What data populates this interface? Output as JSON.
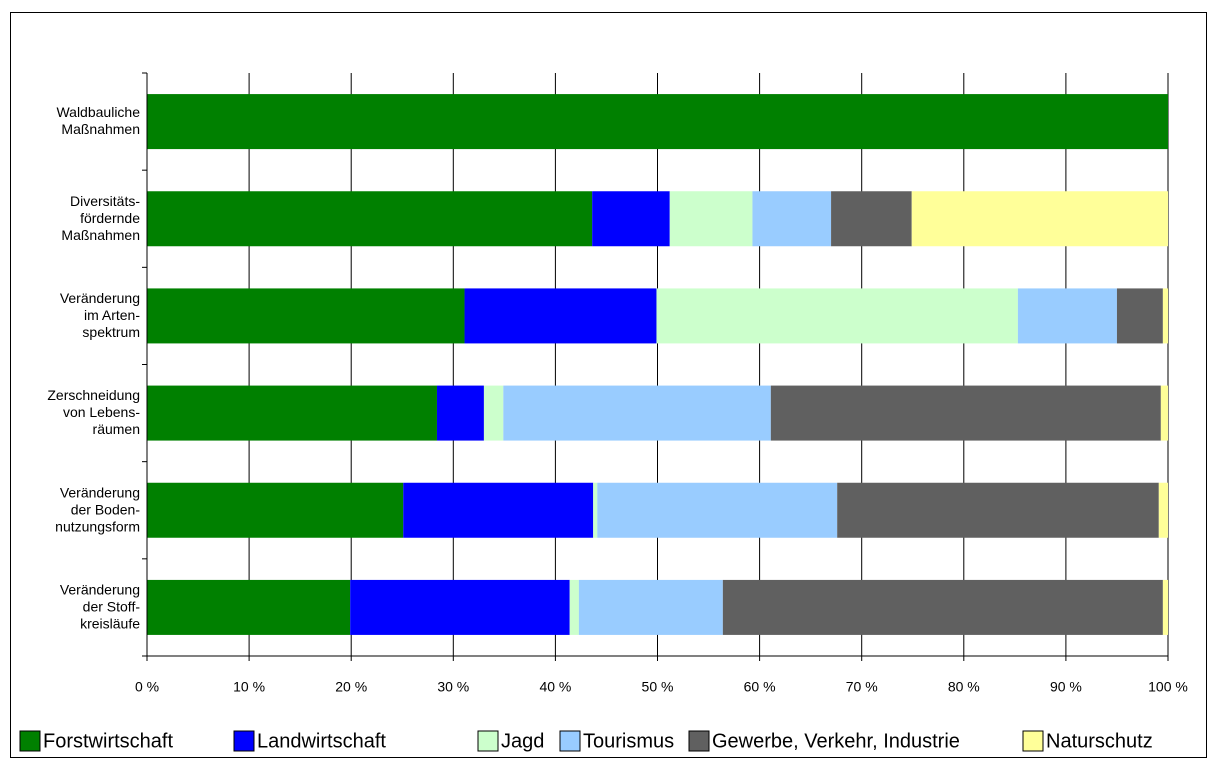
{
  "chart_data": {
    "type": "stacked-bar-horizontal",
    "categories": [
      [
        "Waldbauliche",
        "Maßnahmen"
      ],
      [
        "Diversitäts-",
        "fördernde",
        "Maßnahmen"
      ],
      [
        "Veränderung",
        "im Arten-",
        "spektrum"
      ],
      [
        "Zerschneidung",
        "von Lebens-",
        "räumen"
      ],
      [
        "Veränderung",
        "der Boden-",
        "nutzungsform"
      ],
      [
        "Veränderung",
        "der Stoff-",
        "kreisläufe"
      ]
    ],
    "series": [
      {
        "name": "Forstwirtschaft",
        "color": "#008000",
        "values": [
          100,
          43.6,
          31.1,
          28.4,
          25.1,
          19.9
        ]
      },
      {
        "name": "Landwirtschaft",
        "color": "#0000ff",
        "values": [
          0,
          7.6,
          18.8,
          4.6,
          18.6,
          21.5
        ]
      },
      {
        "name": "Jagd",
        "color": "#ccffcc",
        "values": [
          0,
          8.1,
          35.4,
          1.9,
          0.4,
          0.9
        ]
      },
      {
        "name": "Tourismus",
        "color": "#99ccff",
        "values": [
          0,
          7.7,
          9.7,
          26.2,
          23.5,
          14.1
        ]
      },
      {
        "name": "Gewerbe, Verkehr, Industrie",
        "color": "#606060",
        "values": [
          0,
          7.9,
          4.5,
          38.2,
          31.5,
          43.1
        ]
      },
      {
        "name": "Naturschutz",
        "color": "#ffff99",
        "values": [
          0,
          25.1,
          0.5,
          0.7,
          0.9,
          0.5
        ]
      }
    ],
    "xlim": [
      0,
      100
    ],
    "xticks": [
      {
        "value": 0,
        "label": "0 %"
      },
      {
        "value": 10,
        "label": "10 %"
      },
      {
        "value": 20,
        "label": "20 %"
      },
      {
        "value": 30,
        "label": "30 %"
      },
      {
        "value": 40,
        "label": "40 %"
      },
      {
        "value": 50,
        "label": "50 %"
      },
      {
        "value": 60,
        "label": "60 %"
      },
      {
        "value": 70,
        "label": "70 %"
      },
      {
        "value": 80,
        "label": "80 %"
      },
      {
        "value": 90,
        "label": "90 %"
      },
      {
        "value": 100,
        "label": "100 %"
      }
    ],
    "grid": true,
    "legend": "bottom"
  }
}
